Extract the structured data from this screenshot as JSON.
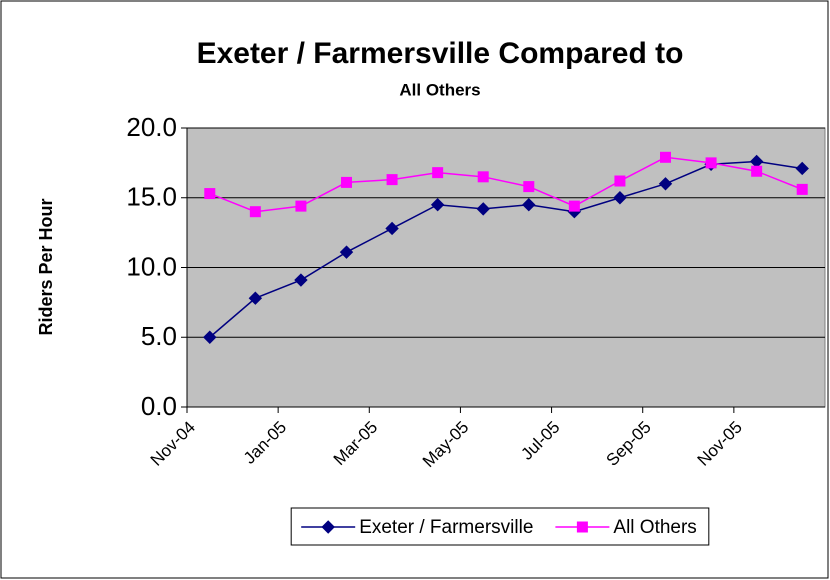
{
  "chart_data": {
    "type": "line",
    "title": "Exeter / Farmersville Compared to",
    "subtitle": "All Others",
    "y_label": "Riders Per Hour",
    "categories": [
      "Nov-04",
      null,
      "Jan-05",
      null,
      "Mar-05",
      null,
      "May-05",
      null,
      "Jul-05",
      null,
      "Sep-05",
      null,
      "Nov-05",
      null
    ],
    "series": [
      {
        "name": "Exeter / Farmersville",
        "color": "#000080",
        "marker": "diamond",
        "values": [
          5.0,
          7.8,
          9.1,
          11.1,
          12.8,
          14.5,
          14.2,
          14.5,
          14.0,
          15.0,
          16.0,
          17.4,
          17.6,
          17.1
        ]
      },
      {
        "name": "All Others",
        "color": "#ff00ff",
        "marker": "square",
        "values": [
          15.3,
          14.0,
          14.4,
          16.1,
          16.3,
          16.8,
          16.5,
          15.8,
          14.4,
          16.2,
          17.9,
          17.5,
          16.9,
          15.6
        ]
      }
    ],
    "ylim": [
      0,
      20
    ],
    "yticks": [
      {
        "value": 0,
        "label": "0.0"
      },
      {
        "value": 5,
        "label": "5.0"
      },
      {
        "value": 10,
        "label": "10.0"
      },
      {
        "value": 15,
        "label": "15.0"
      },
      {
        "value": 20,
        "label": "20.0"
      }
    ],
    "grid": true,
    "plot_background": "#c0c0c0",
    "legend": "bottom"
  }
}
